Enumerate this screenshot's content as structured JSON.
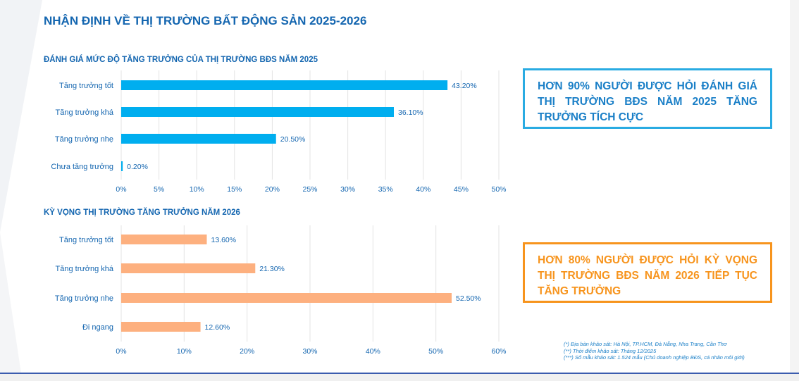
{
  "title": "NHẬN ĐỊNH VỀ THỊ TRƯỜNG BẤT ĐỘNG SẢN 2025-2026",
  "chart_data": [
    {
      "type": "bar",
      "orientation": "horizontal",
      "title": "ĐÁNH GIÁ MỨC ĐỘ TĂNG TRƯỞNG CỦA THỊ TRƯỜNG BĐS NĂM 2025",
      "categories": [
        "Tăng trưởng tốt",
        "Tăng trưởng khá",
        "Tăng trưởng nhẹ",
        "Chưa tăng trưởng"
      ],
      "values": [
        43.2,
        36.1,
        20.5,
        0.2
      ],
      "data_labels": [
        "43.20%",
        "36.10%",
        "20.50%",
        "0.20%"
      ],
      "xlim": [
        0,
        50
      ],
      "xticks": [
        "0%",
        "5%",
        "10%",
        "15%",
        "20%",
        "25%",
        "30%",
        "35%",
        "40%",
        "45%",
        "50%"
      ],
      "grid": true,
      "color": "#00aeef"
    },
    {
      "type": "bar",
      "orientation": "horizontal",
      "title": "KỲ VỌNG THỊ TRƯỜNG TĂNG TRƯỞNG NĂM 2026",
      "categories": [
        "Tăng trưởng tốt",
        "Tăng trưởng khá",
        "Tăng trưởng nhẹ",
        "Đi ngang"
      ],
      "values": [
        13.6,
        21.3,
        52.5,
        12.6
      ],
      "data_labels": [
        "13.60%",
        "21.30%",
        "52.50%",
        "12.60%"
      ],
      "xlim": [
        0,
        60
      ],
      "xticks": [
        "0%",
        "10%",
        "20%",
        "30%",
        "40%",
        "50%",
        "60%"
      ],
      "grid": true,
      "color": "#fdb07f"
    }
  ],
  "callouts": {
    "blue": "HƠN 90% NGƯỜI ĐƯỢC HỎI ĐÁNH GIÁ THỊ TRƯỜNG BĐS NĂM 2025 TĂNG TRƯỞNG TÍCH CỰC",
    "orange": "HƠN 80% NGƯỜI ĐƯỢC HỎI KỲ VỌNG THỊ TRƯỜNG BĐS NĂM 2026 TIẾP TỤC TĂNG TRƯỞNG"
  },
  "notes": [
    "(*) Địa bàn khảo sát: Hà Nội, TP.HCM, Đà Nẵng, Nha Trang, Cần Thơ",
    "(**) Thời điểm khảo sát: Tháng 12/2025",
    "(***) Số mẫu khảo sát: 1.524 mẫu (Chủ doanh nghiệp BĐS, cá nhân môi giới)"
  ]
}
